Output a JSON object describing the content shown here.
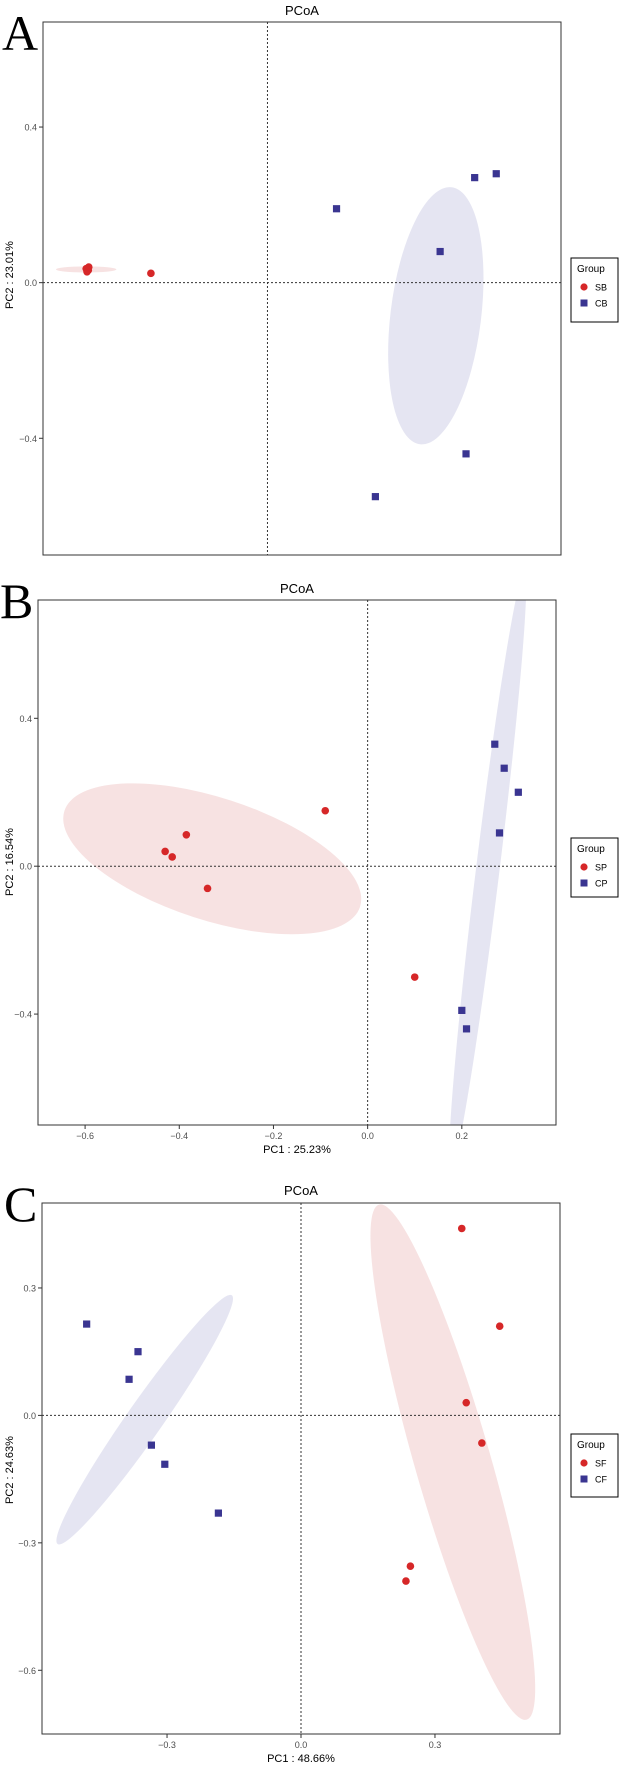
{
  "colors": {
    "red": "#d62728",
    "blue": "#3a3591",
    "red_fill": "#f7e0e0",
    "blue_fill": "#e4e4f1"
  },
  "chart_data": [
    {
      "panel_label": "A",
      "type": "scatter",
      "title": "PCoA",
      "xlabel": "",
      "ylabel": "PC2 : 23.01%",
      "xlim": [
        -0.7,
        0.5
      ],
      "ylim": [
        -0.7,
        0.67
      ],
      "xticks": [],
      "yticks": [
        -0.4,
        0.0,
        0.4
      ],
      "ytick_labels": [
        "−0.4",
        "0.0",
        "0.4"
      ],
      "zero_x": -0.18,
      "legend": {
        "title": "Group",
        "position": "right"
      },
      "series": [
        {
          "name": "SB",
          "marker": "circle",
          "color": "#d62728",
          "x": [
            -0.6,
            -0.595,
            -0.598,
            -0.594,
            -0.45
          ],
          "y": [
            0.036,
            0.032,
            0.028,
            0.04,
            0.024
          ],
          "ellipse": {
            "cx": -0.6,
            "cy": 0.034,
            "rx": 0.07,
            "ry": 0.007,
            "angle": 0
          }
        },
        {
          "name": "CB",
          "marker": "square",
          "color": "#3a3591",
          "x": [
            -0.02,
            0.22,
            0.3,
            0.35,
            0.28,
            0.07
          ],
          "y": [
            0.19,
            0.08,
            0.27,
            0.28,
            -0.44,
            -0.55
          ],
          "ellipse": {
            "cx": 0.21,
            "cy": -0.085,
            "rx": 0.3,
            "ry": 0.105,
            "angle": 83
          }
        }
      ]
    },
    {
      "panel_label": "B",
      "type": "scatter",
      "title": "PCoA",
      "xlabel": "PC1 : 25.23%",
      "ylabel": "PC2 : 16.54%",
      "xlim": [
        -0.7,
        0.4
      ],
      "ylim": [
        -0.7,
        0.72
      ],
      "xticks": [
        -0.6,
        -0.4,
        -0.2,
        0.0,
        0.2
      ],
      "xtick_labels": [
        "−0.6",
        "−0.4",
        "−0.2",
        "0.0",
        "0.2"
      ],
      "yticks": [
        -0.4,
        0.0,
        0.4
      ],
      "ytick_labels": [
        "−0.4",
        "0.0",
        "0.4"
      ],
      "zero_x": 0.0,
      "legend": {
        "title": "Group",
        "position": "right"
      },
      "series": [
        {
          "name": "SP",
          "marker": "circle",
          "color": "#d62728",
          "x": [
            -0.43,
            -0.415,
            -0.385,
            -0.34,
            -0.09,
            0.1
          ],
          "y": [
            0.04,
            0.025,
            0.085,
            -0.06,
            0.15,
            -0.3
          ],
          "ellipse": {
            "cx": -0.33,
            "cy": 0.02,
            "rx": 0.33,
            "ry": 0.13,
            "angle": -18
          }
        },
        {
          "name": "CP",
          "marker": "square",
          "color": "#3a3591",
          "x": [
            0.27,
            0.29,
            0.32,
            0.28,
            0.2,
            0.21
          ],
          "y": [
            0.33,
            0.265,
            0.2,
            0.09,
            -0.39,
            -0.44
          ],
          "ellipse": {
            "cx": 0.255,
            "cy": -0.01,
            "rx": 0.64,
            "ry": 0.025,
            "angle": 83
          }
        }
      ]
    },
    {
      "panel_label": "C",
      "type": "scatter",
      "title": "PCoA",
      "xlabel": "PC1 : 48.66%",
      "ylabel": "PC2 : 24.63%",
      "xlim": [
        -0.58,
        0.58
      ],
      "ylim": [
        -0.75,
        0.5
      ],
      "xticks": [
        -0.3,
        0.0,
        0.3
      ],
      "xtick_labels": [
        "−0.3",
        "0.0",
        "0.3"
      ],
      "yticks": [
        -0.6,
        -0.3,
        0.0,
        0.3
      ],
      "ytick_labels": [
        "−0.6",
        "−0.3",
        "0.0",
        "0.3"
      ],
      "zero_x": 0.0,
      "legend": {
        "title": "Group",
        "position": "right"
      },
      "series": [
        {
          "name": "SF",
          "marker": "circle",
          "color": "#d62728",
          "x": [
            0.36,
            0.445,
            0.37,
            0.405,
            0.245,
            0.235
          ],
          "y": [
            0.44,
            0.21,
            0.03,
            -0.065,
            -0.355,
            -0.39
          ],
          "ellipse": {
            "cx": 0.34,
            "cy": -0.11,
            "rx": 0.6,
            "ry": 0.085,
            "angle": -74
          }
        },
        {
          "name": "CF",
          "marker": "square",
          "color": "#3a3591",
          "x": [
            -0.48,
            -0.365,
            -0.385,
            -0.335,
            -0.305,
            -0.185
          ],
          "y": [
            0.215,
            0.15,
            0.085,
            -0.07,
            -0.115,
            -0.23
          ],
          "ellipse": {
            "cx": -0.35,
            "cy": -0.01,
            "rx": 0.34,
            "ry": 0.04,
            "angle": 55
          }
        }
      ]
    }
  ]
}
